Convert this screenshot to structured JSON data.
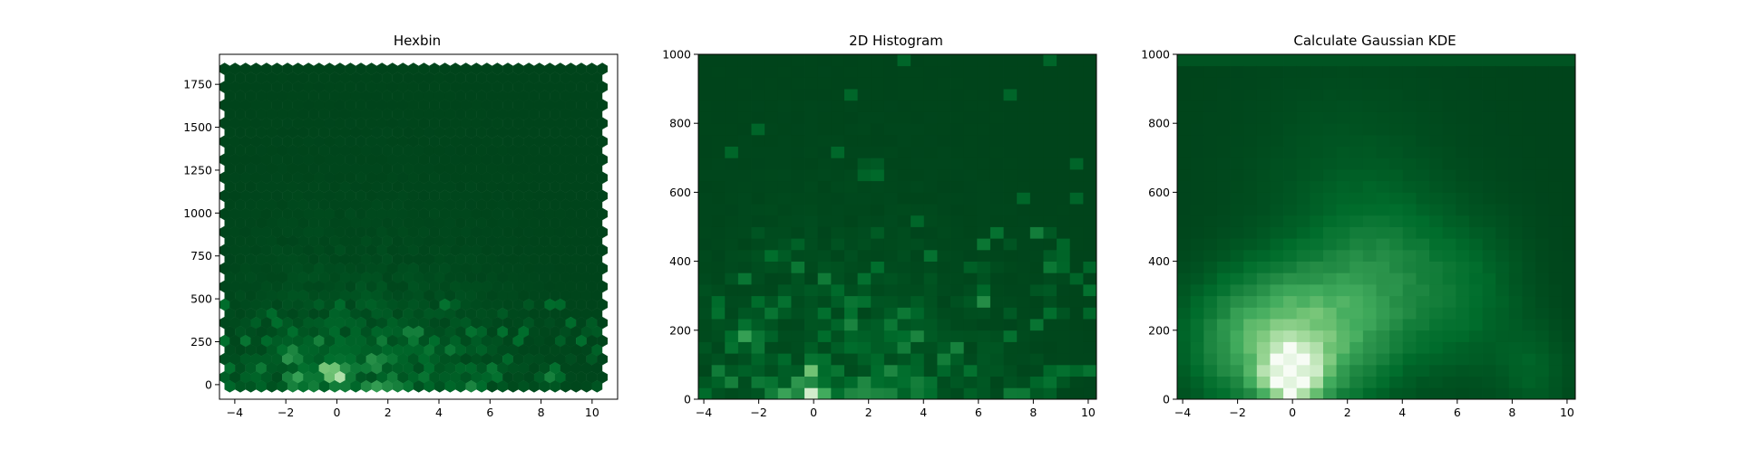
{
  "colors": {
    "background": "#ffffff",
    "cmap_dark": "#00441b",
    "cmap_mid": "#2a924a",
    "cmap_light": "#f7fcf5"
  },
  "chart_data": [
    {
      "type": "heatmap",
      "subtype": "hexbin",
      "title": "Hexbin",
      "xlabel": "",
      "ylabel": "",
      "xlim": [
        -4.6,
        11.0
      ],
      "ylim": [
        -85,
        1925
      ],
      "x_range": [
        -4.4,
        10.4
      ],
      "y_range": [
        -10,
        1840
      ],
      "xticks": [
        "−4",
        "−2",
        "0",
        "2",
        "4",
        "6",
        "8",
        "10"
      ],
      "yticks": [
        "0",
        "250",
        "500",
        "750",
        "1000",
        "1250",
        "1500",
        "1750"
      ],
      "colormap": "Greens_r",
      "grid": false,
      "hotspots": [
        {
          "x": 0.0,
          "y": 60,
          "density": 1.0
        },
        {
          "x": -0.3,
          "y": 90,
          "density": 0.75
        },
        {
          "x": -1.8,
          "y": 170,
          "density": 0.45
        },
        {
          "x": -1.5,
          "y": 40,
          "density": 0.4
        },
        {
          "x": 1.5,
          "y": 150,
          "density": 0.35
        },
        {
          "x": 3.0,
          "y": 300,
          "density": 0.3
        },
        {
          "x": 4.5,
          "y": 200,
          "density": 0.2
        },
        {
          "x": 8.4,
          "y": 40,
          "density": 0.25
        }
      ]
    },
    {
      "type": "heatmap",
      "subtype": "histogram2d",
      "title": "2D Histogram",
      "xlabel": "",
      "ylabel": "",
      "xlim": [
        -4.2,
        10.3
      ],
      "ylim": [
        0,
        1000
      ],
      "xticks": [
        "−4",
        "−2",
        "0",
        "2",
        "4",
        "6",
        "8",
        "10"
      ],
      "yticks": [
        "0",
        "200",
        "400",
        "600",
        "800",
        "1000"
      ],
      "bins": [
        30,
        30
      ],
      "colormap": "Greens_r",
      "grid": false,
      "hotspots": [
        {
          "x": 0.0,
          "y": 20,
          "density": 1.0
        },
        {
          "x": 0.0,
          "y": 80,
          "density": 0.65
        },
        {
          "x": -1.2,
          "y": 15,
          "density": 0.5
        },
        {
          "x": -2.6,
          "y": 190,
          "density": 0.45
        },
        {
          "x": -0.6,
          "y": 50,
          "density": 0.35
        },
        {
          "x": 6.1,
          "y": 290,
          "density": 0.35
        },
        {
          "x": 8.8,
          "y": 390,
          "density": 0.3
        },
        {
          "x": 2.1,
          "y": 660,
          "density": 0.25
        },
        {
          "x": 4.0,
          "y": 20,
          "density": 0.3
        },
        {
          "x": 8.4,
          "y": 40,
          "density": 0.3
        }
      ]
    },
    {
      "type": "heatmap",
      "subtype": "gaussian_kde",
      "title": "Calculate Gaussian KDE",
      "xlabel": "",
      "ylabel": "",
      "xlim": [
        -4.2,
        10.3
      ],
      "ylim": [
        0,
        1000
      ],
      "xticks": [
        "−4",
        "−2",
        "0",
        "2",
        "4",
        "6",
        "8",
        "10"
      ],
      "yticks": [
        "0",
        "200",
        "400",
        "600",
        "800",
        "1000"
      ],
      "grid_resolution": [
        30,
        30
      ],
      "colormap": "Greens_r",
      "grid": false,
      "peak": {
        "x": 0.0,
        "y": 70
      },
      "kernels": [
        {
          "x": 0.0,
          "y": 70,
          "sx": 0.7,
          "sy": 55,
          "w": 1.0
        },
        {
          "x": -1.0,
          "y": 170,
          "sx": 1.8,
          "sy": 130,
          "w": 0.45
        },
        {
          "x": 1.0,
          "y": 180,
          "sx": 1.6,
          "sy": 140,
          "w": 0.3
        },
        {
          "x": 3.2,
          "y": 330,
          "sx": 1.6,
          "sy": 160,
          "w": 0.24
        },
        {
          "x": 6.3,
          "y": 300,
          "sx": 1.5,
          "sy": 150,
          "w": 0.14
        },
        {
          "x": 8.8,
          "y": 80,
          "sx": 0.9,
          "sy": 90,
          "w": 0.1
        },
        {
          "x": 2.0,
          "y": 600,
          "sx": 2.5,
          "sy": 220,
          "w": 0.07
        }
      ]
    }
  ]
}
